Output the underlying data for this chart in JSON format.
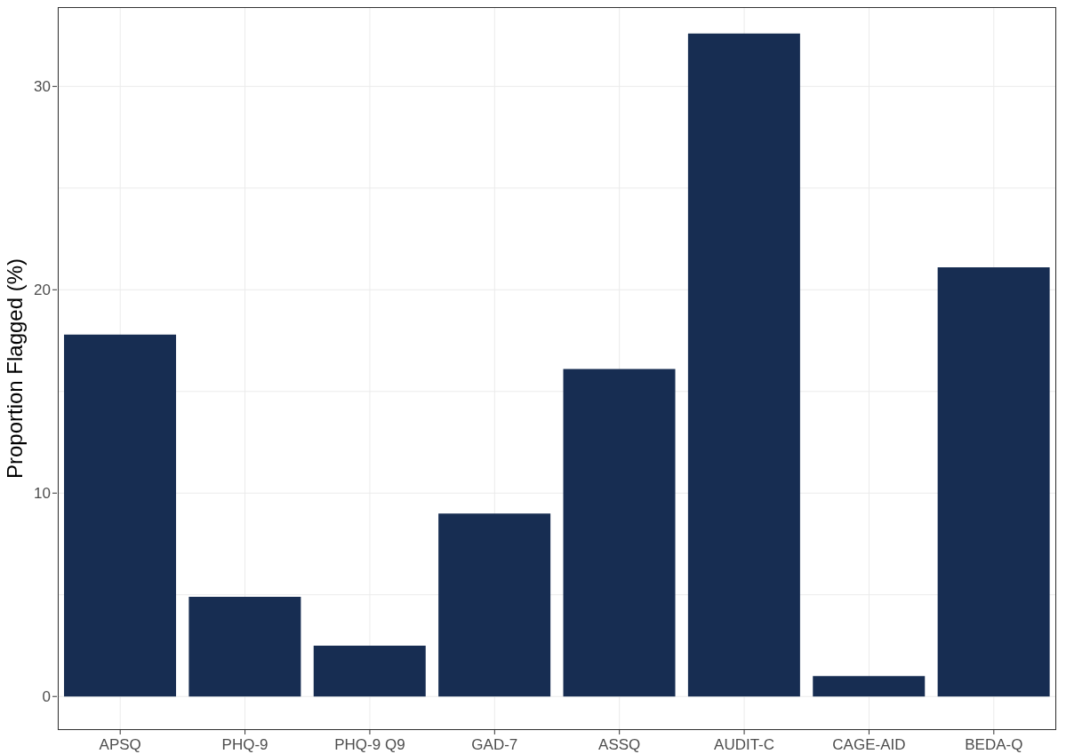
{
  "chart_data": {
    "type": "bar",
    "ylabel": "Proportion Flagged (%)",
    "categories": [
      "APSQ",
      "PHQ-9",
      "PHQ-9 Q9",
      "GAD-7",
      "ASSQ",
      "AUDIT-C",
      "CAGE-AID",
      "BEDA-Q"
    ],
    "values": [
      17.8,
      4.9,
      2.5,
      9.0,
      16.1,
      32.6,
      1.0,
      21.1
    ],
    "color": "#172d52",
    "ylim": [
      -1.65,
      33.9
    ],
    "yticks": [
      0,
      {
        "value": 5,
        "label": null
      },
      10,
      {
        "value": 15,
        "label": null
      },
      20,
      {
        "value": 25,
        "label": null
      },
      30
    ],
    "grid": true
  }
}
